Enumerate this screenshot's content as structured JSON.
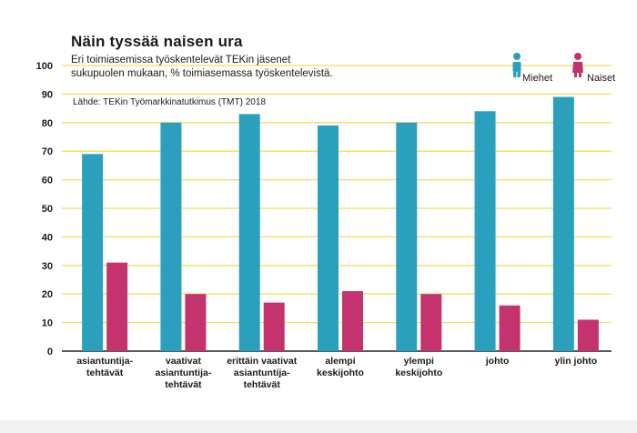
{
  "colors": {
    "men": "#2ba0bd",
    "women": "#c5336e",
    "grid": "#f2df5c",
    "axis": "#222222",
    "text": "#1a1a1a"
  },
  "legend": [
    {
      "name": "Miehet",
      "icon": "male-person-icon"
    },
    {
      "name": "Naiset",
      "icon": "female-person-icon"
    }
  ],
  "chart_data": {
    "type": "bar",
    "title": "Näin tyssää naisen ura",
    "subtitle_lines": [
      "Eri toimiasemissa työskentelevät TEKin jäsenet",
      "sukupuolen mukaan, % toimiasemassa työskentelevistä."
    ],
    "source": "Lähde: TEKin Työmarkkinatutkimus (TMT) 2018",
    "categories": [
      [
        "asiantuntija-",
        "tehtävät"
      ],
      [
        "vaativat",
        "asiantuntija-",
        "tehtävät"
      ],
      [
        "erittäin vaativat",
        "asiantuntija-",
        "tehtävät"
      ],
      [
        "alempi",
        "keskijohto"
      ],
      [
        "ylempi",
        "keskijohto"
      ],
      [
        "johto"
      ],
      [
        "ylin johto"
      ]
    ],
    "series": [
      {
        "name": "Miehet",
        "values": [
          69,
          80,
          83,
          79,
          80,
          84,
          89
        ]
      },
      {
        "name": "Naiset",
        "values": [
          31,
          20,
          17,
          21,
          20,
          16,
          11
        ]
      }
    ],
    "ylim": [
      0,
      100
    ],
    "yticks": [
      "0",
      "10",
      "20",
      "30",
      "40",
      "50",
      "60",
      "70",
      "80",
      "90",
      "100"
    ],
    "xlabel": "",
    "ylabel": "",
    "grid": true,
    "legend_position": "top-right"
  }
}
